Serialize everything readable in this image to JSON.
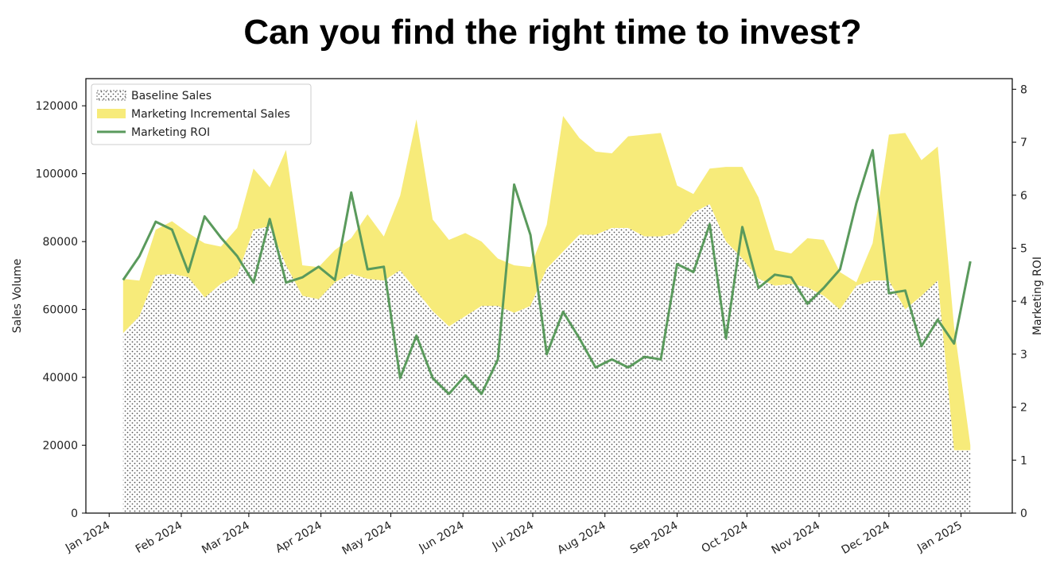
{
  "title": "Can you find the right time to invest?",
  "colors": {
    "baseline_fill": "#ffffff",
    "baseline_dots": "#555555",
    "incremental": "#f7eb7a",
    "roi": "#5a9a5c"
  },
  "chart_data": {
    "type": "area",
    "title": "Can you find the right time to invest?",
    "xlabel": "",
    "ylabel": "Sales Volume",
    "y2label": "Marketing ROI",
    "ylim": [
      0,
      128000
    ],
    "y2lim": [
      0,
      8.2
    ],
    "yticks": [
      0,
      20000,
      40000,
      60000,
      80000,
      100000,
      120000
    ],
    "y2ticks": [
      0,
      1,
      2,
      3,
      4,
      5,
      6,
      7,
      8
    ],
    "xlim": [
      "2023-12-22",
      "2025-01-23"
    ],
    "xticks": [
      "2024-01-01",
      "2024-02-01",
      "2024-03-01",
      "2024-04-01",
      "2024-05-01",
      "2024-06-01",
      "2024-07-01",
      "2024-08-01",
      "2024-09-01",
      "2024-10-01",
      "2024-11-01",
      "2024-12-01",
      "2025-01-01"
    ],
    "xticklabels": [
      "Jan 2024",
      "Feb 2024",
      "Mar 2024",
      "Apr 2024",
      "May 2024",
      "Jun 2024",
      "Jul 2024",
      "Aug 2024",
      "Sep 2024",
      "Oct 2024",
      "Nov 2024",
      "Dec 2024",
      "Jan 2025"
    ],
    "legend_position": "top-left",
    "grid": false,
    "x": [
      "2024-01-07",
      "2024-01-14",
      "2024-01-21",
      "2024-01-28",
      "2024-02-04",
      "2024-02-11",
      "2024-02-18",
      "2024-02-25",
      "2024-03-03",
      "2024-03-10",
      "2024-03-17",
      "2024-03-24",
      "2024-03-31",
      "2024-04-07",
      "2024-04-14",
      "2024-04-21",
      "2024-04-28",
      "2024-05-05",
      "2024-05-12",
      "2024-05-19",
      "2024-05-26",
      "2024-06-02",
      "2024-06-09",
      "2024-06-16",
      "2024-06-23",
      "2024-06-30",
      "2024-07-07",
      "2024-07-14",
      "2024-07-21",
      "2024-07-28",
      "2024-08-04",
      "2024-08-11",
      "2024-08-18",
      "2024-08-25",
      "2024-09-01",
      "2024-09-08",
      "2024-09-15",
      "2024-09-22",
      "2024-09-29",
      "2024-10-06",
      "2024-10-13",
      "2024-10-20",
      "2024-10-27",
      "2024-11-03",
      "2024-11-10",
      "2024-11-17",
      "2024-11-24",
      "2024-12-01",
      "2024-12-08",
      "2024-12-15",
      "2024-12-22",
      "2024-12-29",
      "2025-01-05"
    ],
    "series": [
      {
        "name": "Baseline Sales",
        "kind": "area",
        "axis": "left",
        "values": [
          53000,
          58000,
          70000,
          70500,
          69500,
          63500,
          67500,
          70000,
          83500,
          84500,
          73000,
          64000,
          63000,
          68000,
          70500,
          69000,
          68500,
          71500,
          65500,
          59500,
          55000,
          58000,
          61000,
          61000,
          59000,
          61000,
          72000,
          77000,
          82000,
          82000,
          84000,
          84000,
          81500,
          81500,
          82500,
          88500,
          91000,
          80000,
          75000,
          69000,
          67000,
          67500,
          66500,
          64000,
          60000,
          67000,
          68500,
          68500,
          60000,
          64000,
          68500,
          18500,
          18500
        ]
      },
      {
        "name": "Marketing Incremental Sales",
        "kind": "area",
        "axis": "left",
        "values": [
          16000,
          10500,
          13500,
          15500,
          13000,
          16000,
          11000,
          14000,
          18000,
          11500,
          34000,
          9000,
          9500,
          9500,
          10500,
          19000,
          13000,
          22000,
          50500,
          27000,
          25500,
          24500,
          19000,
          14000,
          14000,
          11500,
          13000,
          40000,
          28500,
          24500,
          22000,
          27000,
          30000,
          30500,
          14000,
          5500,
          10500,
          22000,
          27000,
          24000,
          10500,
          9000,
          14500,
          16500,
          11000,
          1000,
          11000,
          43000,
          52000,
          40000,
          39500,
          36500,
          1500
        ]
      },
      {
        "name": "Marketing ROI",
        "kind": "line",
        "axis": "right",
        "values": [
          4.4,
          4.85,
          5.5,
          5.35,
          4.55,
          5.6,
          5.2,
          4.85,
          4.35,
          5.55,
          4.35,
          4.45,
          4.65,
          4.4,
          6.05,
          4.6,
          4.65,
          2.55,
          3.35,
          2.55,
          2.25,
          2.6,
          2.25,
          2.9,
          6.2,
          5.25,
          3.0,
          3.8,
          3.3,
          2.75,
          2.9,
          2.75,
          2.95,
          2.9,
          4.7,
          4.55,
          5.45,
          3.3,
          5.4,
          4.25,
          4.5,
          4.45,
          3.95,
          4.25,
          4.6,
          5.85,
          6.85,
          4.15,
          4.2,
          3.15,
          3.65,
          3.2,
          4.75
        ]
      }
    ]
  }
}
